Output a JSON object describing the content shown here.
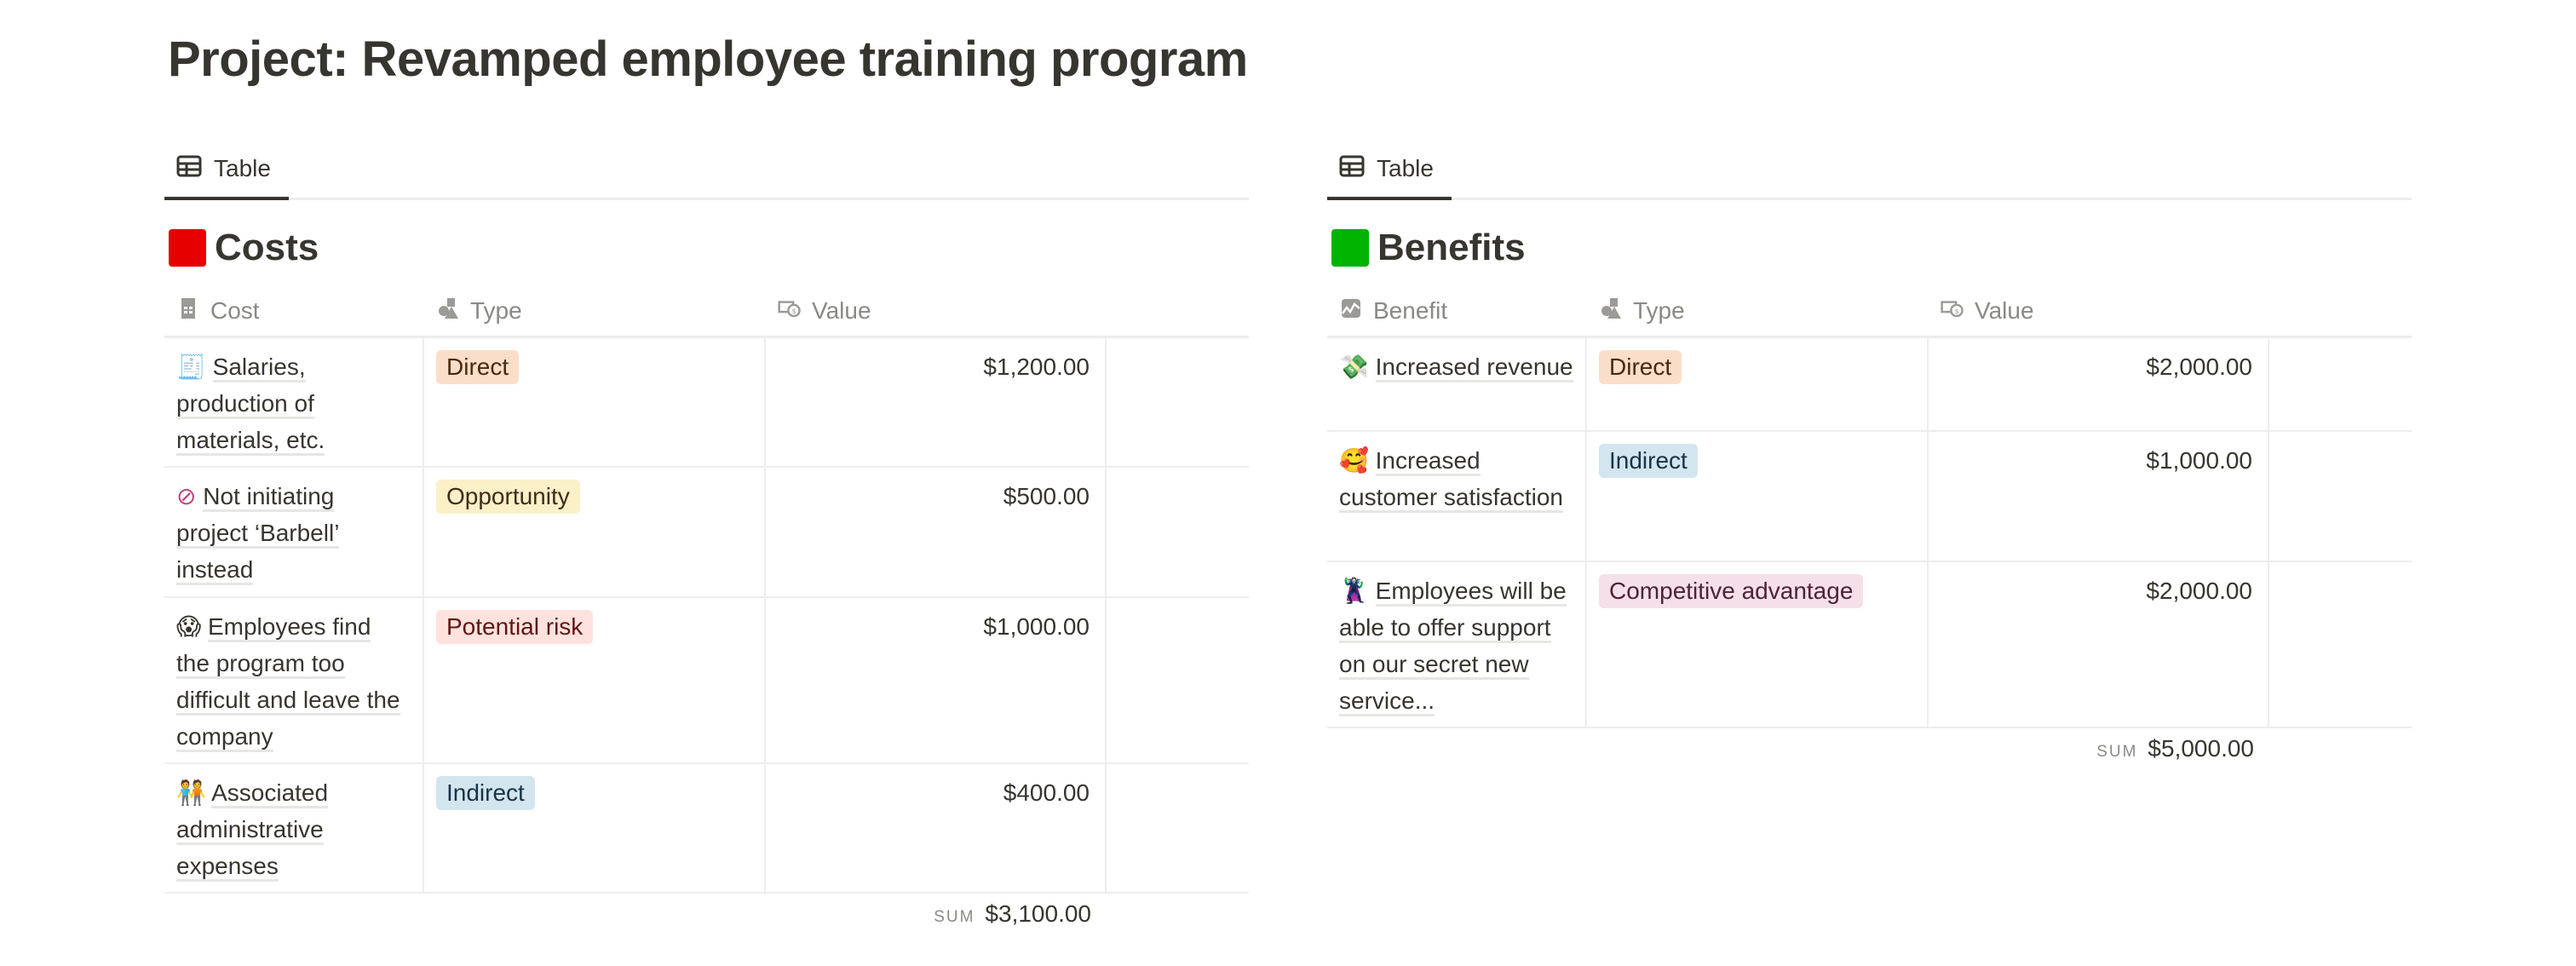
{
  "page_title": "Project: Revamped employee training program",
  "costs": {
    "tab_label": "Table",
    "title": "Costs",
    "title_icon_color": "#e60000",
    "columns": [
      "Cost",
      "Type",
      "Value"
    ],
    "rows": [
      {
        "icon": "🧾",
        "name": "Salaries, production of materials, etc.",
        "type": "Direct",
        "value": "$1,200.00"
      },
      {
        "icon": "⊘",
        "name": "Not initiating project ‘Barbell’ instead",
        "type": "Opportunity",
        "value": "$500.00"
      },
      {
        "icon": "😱",
        "name": "Employees find the program too difficult and leave the company",
        "type": "Potential risk",
        "value": "$1,000.00"
      },
      {
        "icon": "🧑‍🤝‍🧑",
        "name": "Associated administrative expenses",
        "type": "Indirect",
        "value": "$400.00"
      }
    ],
    "sum_label": "SUM",
    "sum_value": "$3,100.00"
  },
  "benefits": {
    "tab_label": "Table",
    "title": "Benefits",
    "title_icon_color": "#00b300",
    "columns": [
      "Benefit",
      "Type",
      "Value"
    ],
    "rows": [
      {
        "icon": "💸",
        "name": "Increased revenue",
        "type": "Direct",
        "value": "$2,000.00"
      },
      {
        "icon": "🥰",
        "name": "Increased customer satisfaction",
        "type": "Indirect",
        "value": "$1,000.00"
      },
      {
        "icon": "🦹",
        "name": "Employees will be able to offer support on our secret new service...",
        "type": "Competitive advantage",
        "value": "$2,000.00"
      }
    ],
    "sum_label": "SUM",
    "sum_value": "$5,000.00"
  },
  "type_colors": {
    "Direct": {
      "bg": "#fadec9",
      "fg": "#49290e"
    },
    "Opportunity": {
      "bg": "#fbf0c8",
      "fg": "#402c1b"
    },
    "Potential risk": {
      "bg": "#ffe2dd",
      "fg": "#5d1715"
    },
    "Indirect": {
      "bg": "#d3e5ef",
      "fg": "#183347"
    },
    "Competitive advantage": {
      "bg": "#f5e0e9",
      "fg": "#4c2337"
    }
  }
}
